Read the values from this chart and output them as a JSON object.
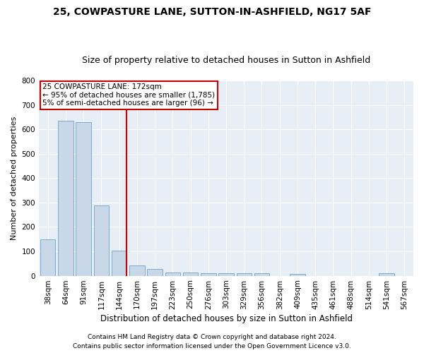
{
  "title1": "25, COWPASTURE LANE, SUTTON-IN-ASHFIELD, NG17 5AF",
  "title2": "Size of property relative to detached houses in Sutton in Ashfield",
  "xlabel": "Distribution of detached houses by size in Sutton in Ashfield",
  "ylabel": "Number of detached properties",
  "footnote1": "Contains HM Land Registry data © Crown copyright and database right 2024.",
  "footnote2": "Contains public sector information licensed under the Open Government Licence v3.0.",
  "categories": [
    "38sqm",
    "64sqm",
    "91sqm",
    "117sqm",
    "144sqm",
    "170sqm",
    "197sqm",
    "223sqm",
    "250sqm",
    "276sqm",
    "303sqm",
    "329sqm",
    "356sqm",
    "382sqm",
    "409sqm",
    "435sqm",
    "461sqm",
    "488sqm",
    "514sqm",
    "541sqm",
    "567sqm"
  ],
  "values": [
    150,
    635,
    628,
    288,
    103,
    42,
    29,
    12,
    12,
    10,
    10,
    10,
    10,
    0,
    8,
    0,
    0,
    0,
    0,
    10,
    0
  ],
  "bar_color": "#c8d8e8",
  "bar_edge_color": "#7aaacc",
  "vline_color": "#cc0000",
  "annotation_line1": "25 COWPASTURE LANE: 172sqm",
  "annotation_line2": "← 95% of detached houses are smaller (1,785)",
  "annotation_line3": "5% of semi-detached houses are larger (96) →",
  "annotation_box_color": "#ffffff",
  "annotation_box_edge": "#cc0000",
  "ylim": [
    0,
    800
  ],
  "yticks": [
    0,
    100,
    200,
    300,
    400,
    500,
    600,
    700,
    800
  ],
  "fig_bg_color": "#ffffff",
  "plot_bg_color": "#e8eef5",
  "grid_color": "#ffffff",
  "title1_fontsize": 10,
  "title2_fontsize": 9,
  "xlabel_fontsize": 8.5,
  "ylabel_fontsize": 8,
  "tick_fontsize": 7.5,
  "annot_fontsize": 7.5,
  "footnote_fontsize": 6.5
}
